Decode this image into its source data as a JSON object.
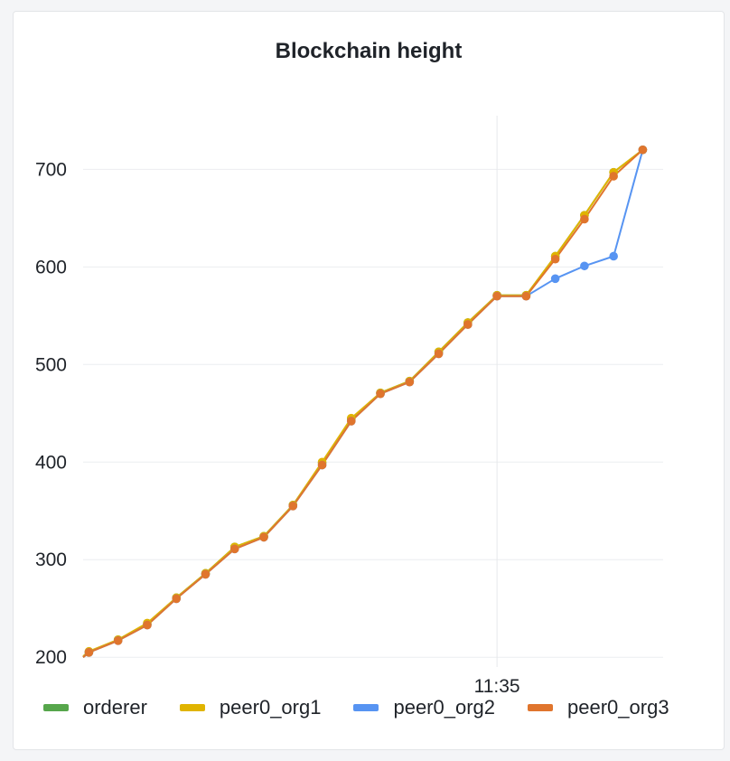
{
  "panel": {
    "title": "Blockchain height"
  },
  "chart_data": {
    "type": "line",
    "title": "Blockchain height",
    "xlabel": "",
    "ylabel": "",
    "ylim": [
      190,
      755
    ],
    "y_ticks": [
      200,
      300,
      400,
      500,
      600,
      700
    ],
    "x_ticks": [
      {
        "x": 14,
        "label": "11:35"
      }
    ],
    "x": [
      0,
      1,
      2,
      3,
      4,
      5,
      6,
      7,
      8,
      9,
      10,
      11,
      12,
      13,
      14,
      15,
      16,
      17,
      18,
      19
    ],
    "xlim": [
      -0.2,
      19.7
    ],
    "crosshair_x": 14,
    "grid": true,
    "legend_position": "bottom-left",
    "series": [
      {
        "name": "orderer",
        "color": "#56a64b",
        "values": [
          205,
          218,
          234,
          261,
          286,
          313,
          324,
          356,
          399,
          444,
          471,
          483,
          513,
          543,
          571,
          571,
          611,
          653,
          697,
          720
        ]
      },
      {
        "name": "peer0_org1",
        "color": "#e0b400",
        "values": [
          206,
          218,
          235,
          261,
          286,
          313,
          324,
          356,
          400,
          445,
          471,
          483,
          513,
          543,
          571,
          571,
          611,
          653,
          697,
          720
        ]
      },
      {
        "name": "peer0_org2",
        "color": "#5794f2",
        "values": [
          205,
          217,
          233,
          260,
          285,
          311,
          323,
          355,
          397,
          442,
          470,
          482,
          511,
          541,
          570,
          570,
          588,
          601,
          611,
          720
        ]
      },
      {
        "name": "peer0_org3",
        "color": "#e0752d",
        "values": [
          205,
          217,
          233,
          260,
          285,
          311,
          323,
          355,
          397,
          442,
          470,
          482,
          511,
          541,
          570,
          570,
          608,
          649,
          693,
          720
        ]
      }
    ]
  }
}
